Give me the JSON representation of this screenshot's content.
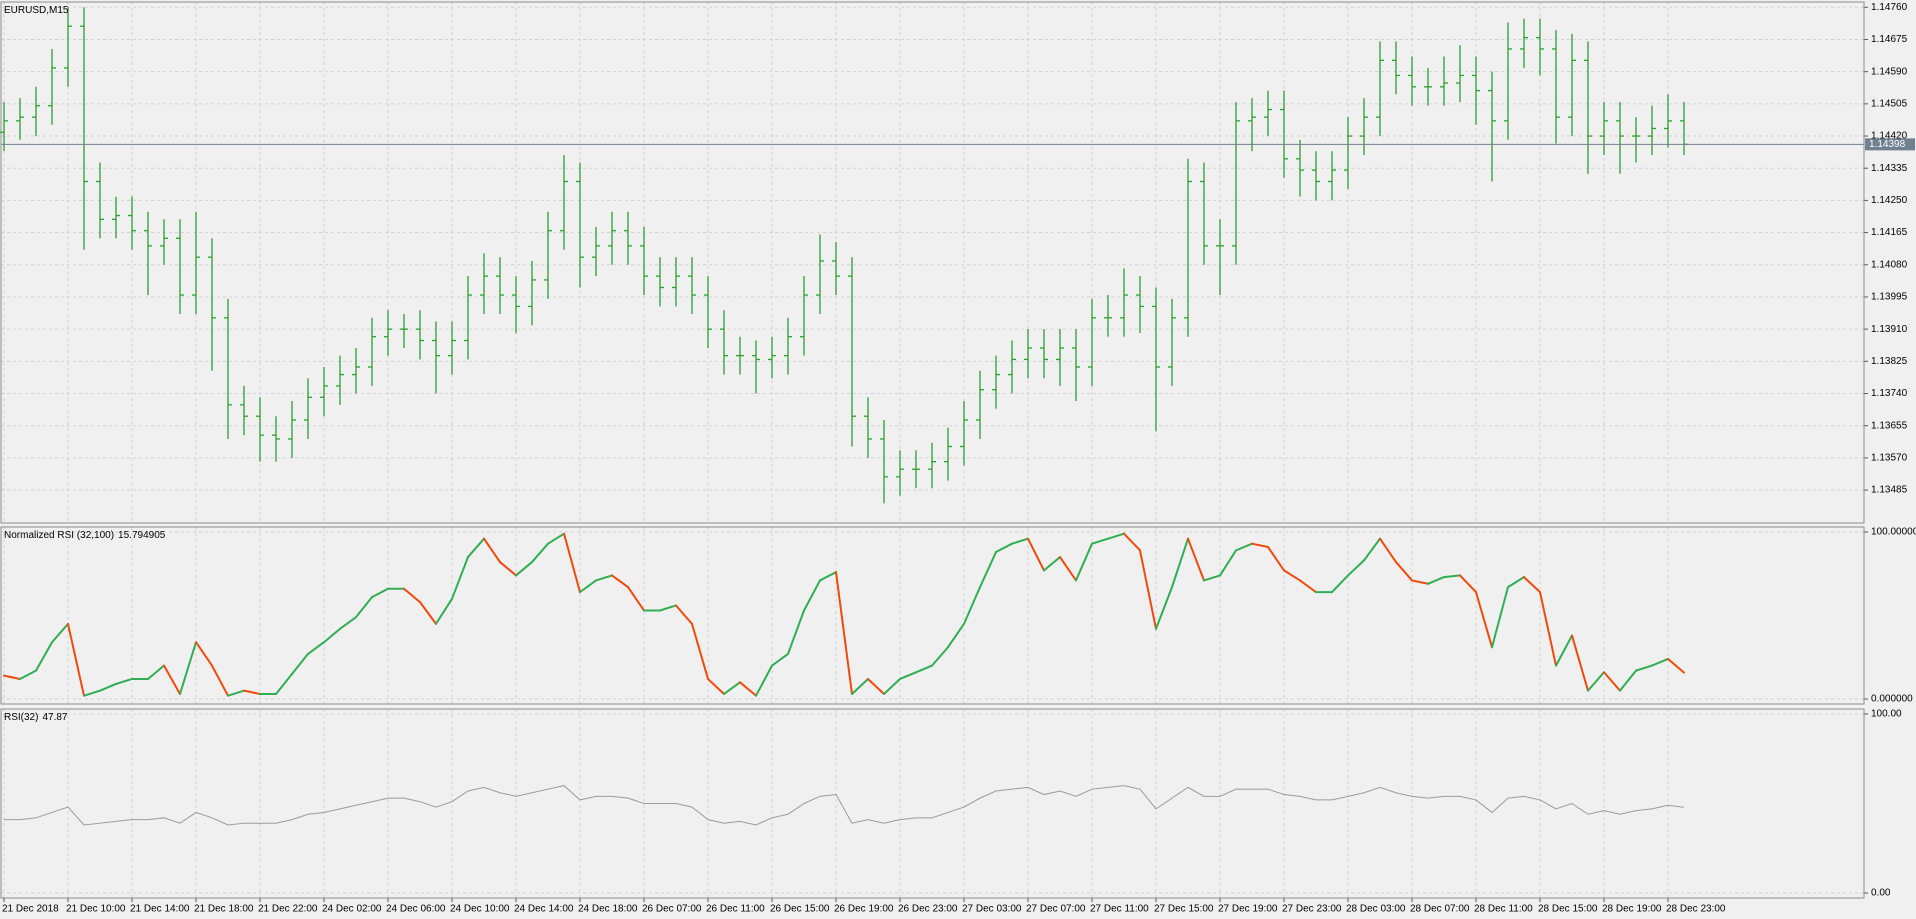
{
  "chart_data": [
    {
      "type": "ohlc",
      "title": "EURUSD,M15",
      "color": "#2f9e2f",
      "grid": true,
      "categories": [
        "21 Dec 2018",
        null,
        null,
        null,
        "21 Dec 10:00",
        null,
        null,
        null,
        "21 Dec 14:00",
        null,
        null,
        null,
        "21 Dec 18:00",
        null,
        null,
        null,
        "21 Dec 22:00",
        null,
        null,
        null,
        "24 Dec 02:00",
        null,
        null,
        null,
        "24 Dec 06:00",
        null,
        null,
        null,
        "24 Dec 10:00",
        null,
        null,
        null,
        "24 Dec 14:00",
        null,
        null,
        null,
        "24 Dec 18:00",
        null,
        null,
        null,
        "26 Dec 07:00",
        null,
        null,
        null,
        "26 Dec 11:00",
        null,
        null,
        null,
        "26 Dec 15:00",
        null,
        null,
        null,
        "26 Dec 19:00",
        null,
        null,
        null,
        "26 Dec 23:00",
        null,
        null,
        null,
        "27 Dec 03:00",
        null,
        null,
        null,
        "27 Dec 07:00",
        null,
        null,
        null,
        "27 Dec 11:00",
        null,
        null,
        null,
        "27 Dec 15:00",
        null,
        null,
        null,
        "27 Dec 19:00",
        null,
        null,
        null,
        "27 Dec 23:00",
        null,
        null,
        null,
        "28 Dec 03:00",
        null,
        null,
        null,
        "28 Dec 07:00",
        null,
        null,
        null,
        "28 Dec 11:00",
        null,
        null,
        null,
        "28 Dec 15:00",
        null,
        null,
        null,
        "28 Dec 19:00",
        null,
        null,
        null,
        "28 Dec 23:00",
        null
      ],
      "open": [
        1.1443,
        1.1446,
        1.1447,
        1.145,
        1.146,
        1.1471,
        1.143,
        1.142,
        1.1421,
        1.1417,
        1.1413,
        1.1415,
        1.14,
        1.141,
        1.1394,
        1.1371,
        1.1368,
        1.1363,
        1.1362,
        1.1367,
        1.1373,
        1.1376,
        1.1379,
        1.1381,
        1.1389,
        1.1391,
        1.1391,
        1.1388,
        1.1384,
        1.1388,
        1.14,
        1.1405,
        1.14,
        1.1397,
        1.1404,
        1.1417,
        1.143,
        1.141,
        1.1413,
        1.1417,
        1.1413,
        1.1405,
        1.1402,
        1.1405,
        1.14,
        1.1391,
        1.1384,
        1.1384,
        1.1383,
        1.1384,
        1.1389,
        1.14,
        1.1409,
        1.1405,
        1.1368,
        1.1362,
        1.1352,
        1.1354,
        1.1354,
        1.1356,
        1.136,
        1.1367,
        1.1375,
        1.1379,
        1.1383,
        1.1386,
        1.1383,
        1.1386,
        1.1381,
        1.1394,
        1.1394,
        1.14,
        1.1397,
        1.1381,
        1.1394,
        1.143,
        1.1413,
        1.1413,
        1.1446,
        1.1447,
        1.1449,
        1.1436,
        1.1433,
        1.143,
        1.1433,
        1.1442,
        1.1447,
        1.1462,
        1.1458,
        1.1455,
        1.1455,
        1.1456,
        1.1458,
        1.1454,
        1.1446,
        1.1465,
        1.1468,
        1.1465,
        1.1447,
        1.1462,
        1.1442,
        1.1446,
        1.1442,
        1.1442,
        1.1444,
        1.1446
      ],
      "high": [
        1.1451,
        1.1452,
        1.1455,
        1.1465,
        1.1476,
        1.1476,
        1.1435,
        1.1426,
        1.1426,
        1.1422,
        1.142,
        1.142,
        1.1422,
        1.1415,
        1.1399,
        1.1376,
        1.1373,
        1.1368,
        1.1372,
        1.1378,
        1.1381,
        1.1384,
        1.1386,
        1.1394,
        1.1396,
        1.1395,
        1.1396,
        1.1393,
        1.1393,
        1.1405,
        1.1411,
        1.141,
        1.1405,
        1.1409,
        1.1422,
        1.1437,
        1.1435,
        1.1418,
        1.1422,
        1.1422,
        1.1418,
        1.141,
        1.141,
        1.141,
        1.1405,
        1.1396,
        1.1389,
        1.1388,
        1.1389,
        1.1394,
        1.1405,
        1.1416,
        1.1414,
        1.141,
        1.1373,
        1.1367,
        1.1359,
        1.1359,
        1.1361,
        1.1365,
        1.1372,
        1.138,
        1.1384,
        1.1388,
        1.1391,
        1.1391,
        1.1391,
        1.1391,
        1.1399,
        1.14,
        1.1407,
        1.1405,
        1.1402,
        1.1399,
        1.1436,
        1.1435,
        1.142,
        1.1451,
        1.1452,
        1.1454,
        1.1454,
        1.1441,
        1.1438,
        1.1438,
        1.1447,
        1.1452,
        1.1467,
        1.1467,
        1.1463,
        1.146,
        1.1463,
        1.1466,
        1.1463,
        1.1459,
        1.1472,
        1.1473,
        1.1473,
        1.147,
        1.1469,
        1.1467,
        1.1451,
        1.1451,
        1.1447,
        1.145,
        1.1453,
        1.1451
      ],
      "low": [
        1.1438,
        1.1441,
        1.1442,
        1.1445,
        1.1455,
        1.1412,
        1.1415,
        1.1415,
        1.1412,
        1.14,
        1.1408,
        1.1395,
        1.1395,
        1.138,
        1.1362,
        1.1363,
        1.1356,
        1.1356,
        1.1357,
        1.1362,
        1.1368,
        1.1371,
        1.1374,
        1.1376,
        1.1384,
        1.1386,
        1.1383,
        1.1374,
        1.1379,
        1.1383,
        1.1395,
        1.1395,
        1.139,
        1.1392,
        1.1399,
        1.1412,
        1.1402,
        1.1405,
        1.1408,
        1.1408,
        1.14,
        1.1397,
        1.1397,
        1.1395,
        1.1386,
        1.1379,
        1.1379,
        1.1374,
        1.1378,
        1.1379,
        1.1384,
        1.1395,
        1.14,
        1.136,
        1.1357,
        1.1345,
        1.1347,
        1.1349,
        1.1349,
        1.1351,
        1.1355,
        1.1362,
        1.137,
        1.1374,
        1.1378,
        1.1378,
        1.1376,
        1.1372,
        1.1376,
        1.1389,
        1.1389,
        1.139,
        1.1364,
        1.1376,
        1.1389,
        1.1408,
        1.14,
        1.1408,
        1.1438,
        1.1442,
        1.1431,
        1.1426,
        1.1425,
        1.1425,
        1.1428,
        1.1437,
        1.1442,
        1.1453,
        1.145,
        1.145,
        1.145,
        1.1451,
        1.1445,
        1.143,
        1.1441,
        1.146,
        1.1458,
        1.144,
        1.1442,
        1.1432,
        1.1437,
        1.1432,
        1.1435,
        1.1437,
        1.1439,
        1.1437
      ],
      "close": [
        1.1446,
        1.1447,
        1.145,
        1.146,
        1.1471,
        1.143,
        1.142,
        1.1421,
        1.1417,
        1.1413,
        1.1415,
        1.14,
        1.141,
        1.1394,
        1.1371,
        1.1368,
        1.1363,
        1.1362,
        1.1367,
        1.1373,
        1.1376,
        1.1379,
        1.1381,
        1.1389,
        1.1391,
        1.1391,
        1.1388,
        1.1384,
        1.1388,
        1.14,
        1.1405,
        1.14,
        1.1397,
        1.1404,
        1.1417,
        1.143,
        1.141,
        1.1413,
        1.1417,
        1.1413,
        1.1405,
        1.1402,
        1.1405,
        1.14,
        1.1391,
        1.1384,
        1.1384,
        1.1383,
        1.1384,
        1.1389,
        1.14,
        1.1409,
        1.1405,
        1.1368,
        1.1362,
        1.1352,
        1.1354,
        1.1354,
        1.1356,
        1.136,
        1.1367,
        1.1375,
        1.1379,
        1.1383,
        1.1386,
        1.1383,
        1.1386,
        1.1381,
        1.1394,
        1.1394,
        1.14,
        1.1397,
        1.1381,
        1.1394,
        1.143,
        1.1413,
        1.1413,
        1.1446,
        1.1447,
        1.1449,
        1.1436,
        1.1433,
        1.143,
        1.1433,
        1.1442,
        1.1447,
        1.1462,
        1.1458,
        1.1455,
        1.1455,
        1.1456,
        1.1458,
        1.1454,
        1.1446,
        1.1465,
        1.1468,
        1.1465,
        1.1447,
        1.1462,
        1.1442,
        1.1446,
        1.1442,
        1.1442,
        1.1444,
        1.1446,
        1.14398
      ],
      "current_price": 1.14398,
      "ylim": [
        1.13398,
        1.14774
      ],
      "yticks": [
        {
          "value": 1.1476,
          "label": "1.14760"
        },
        1.14675,
        {
          "value": 1.1459,
          "label": "1.14590"
        },
        1.14505,
        {
          "value": 1.1442,
          "label": "1.14420"
        },
        1.14335,
        {
          "value": 1.1425,
          "label": "1.14250"
        },
        1.14165,
        {
          "value": 1.1408,
          "label": "1.14080"
        },
        1.13995,
        {
          "value": 1.1391,
          "label": "1.13910"
        },
        1.13825,
        {
          "value": 1.1374,
          "label": "1.13740"
        },
        1.13655,
        {
          "value": 1.1357,
          "label": "1.13570"
        },
        1.13485
      ]
    },
    {
      "type": "updown-line",
      "title": "Normalized RSI (32,100)",
      "up_color": "#2fae52",
      "down_color": "#f04a0a",
      "values": [
        14,
        12,
        17,
        34,
        45,
        2,
        5,
        9,
        12,
        12,
        20,
        3,
        34,
        20,
        2,
        5,
        3,
        3,
        15,
        27,
        34,
        42,
        49,
        61,
        66,
        66,
        58,
        45,
        60,
        85,
        96,
        82,
        74,
        82,
        93,
        99,
        64,
        71,
        74,
        67,
        53,
        53,
        56,
        45,
        12,
        3,
        10,
        2,
        20,
        27,
        53,
        71,
        76,
        3,
        12,
        3,
        12,
        16,
        20,
        31,
        45,
        67,
        88,
        93,
        96,
        77,
        85,
        71,
        93,
        96,
        99,
        89,
        42,
        67,
        96,
        71,
        74,
        89,
        93,
        91,
        77,
        71,
        64,
        64,
        74,
        83,
        96,
        82,
        71,
        69,
        73,
        74,
        64,
        31,
        67,
        73,
        64,
        20,
        38,
        5,
        16,
        5,
        17,
        20,
        24,
        15.794905
      ],
      "ylim": [
        0,
        100
      ],
      "yticks": [
        {
          "value": 100,
          "label": "100.000000"
        },
        {
          "value": 0,
          "label": "0.000000"
        }
      ]
    },
    {
      "type": "line",
      "title": "RSI(32)",
      "color": "#9a9a9a",
      "values": [
        41,
        41,
        42,
        45,
        48,
        38,
        39,
        40,
        41,
        41,
        42,
        39,
        45,
        42,
        38,
        39,
        39,
        39,
        41,
        44,
        45,
        47,
        49,
        51,
        53,
        53,
        51,
        48,
        51,
        57,
        59,
        56,
        54,
        56,
        58,
        60,
        52,
        54,
        54,
        53,
        50,
        50,
        50,
        48,
        41,
        39,
        40,
        38,
        42,
        44,
        50,
        54,
        55,
        39,
        41,
        39,
        41,
        42,
        42,
        45,
        48,
        53,
        57,
        58,
        59,
        55,
        57,
        54,
        58,
        59,
        60,
        58,
        47,
        53,
        59,
        54,
        54,
        58,
        58,
        58,
        55,
        54,
        52,
        52,
        54,
        56,
        59,
        56,
        54,
        53,
        54,
        54,
        52,
        45,
        53,
        54,
        52,
        47,
        50,
        44,
        46,
        44,
        46,
        47,
        49,
        47.87
      ],
      "ylim": [
        0,
        100
      ],
      "yticks": [
        {
          "value": 100,
          "label": "100.00"
        },
        {
          "value": 0,
          "label": "0.00"
        }
      ]
    }
  ]
}
